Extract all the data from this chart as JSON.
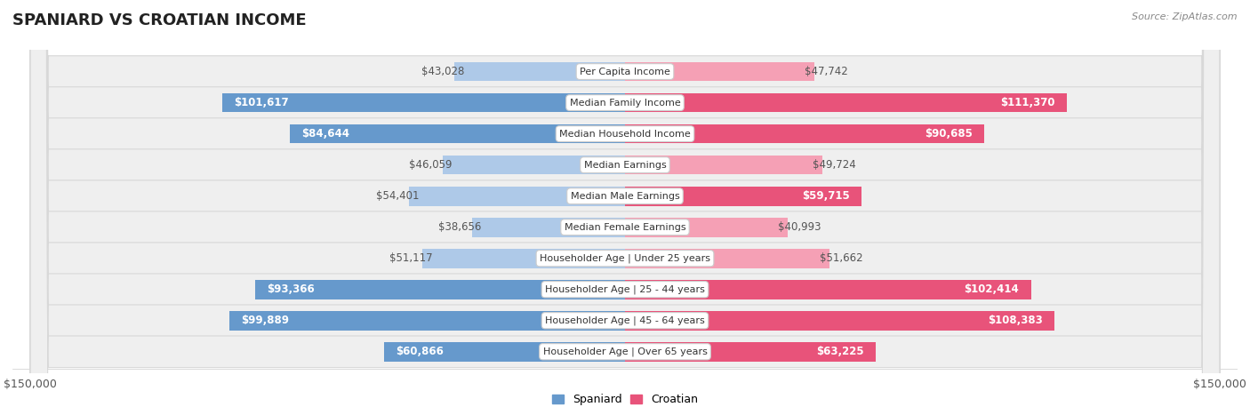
{
  "title": "SPANIARD VS CROATIAN INCOME",
  "source": "Source: ZipAtlas.com",
  "categories": [
    "Per Capita Income",
    "Median Family Income",
    "Median Household Income",
    "Median Earnings",
    "Median Male Earnings",
    "Median Female Earnings",
    "Householder Age | Under 25 years",
    "Householder Age | 25 - 44 years",
    "Householder Age | 45 - 64 years",
    "Householder Age | Over 65 years"
  ],
  "spaniard_values": [
    43028,
    101617,
    84644,
    46059,
    54401,
    38656,
    51117,
    93366,
    99889,
    60866
  ],
  "croatian_values": [
    47742,
    111370,
    90685,
    49724,
    59715,
    40993,
    51662,
    102414,
    108383,
    63225
  ],
  "spaniard_labels": [
    "$43,028",
    "$101,617",
    "$84,644",
    "$46,059",
    "$54,401",
    "$38,656",
    "$51,117",
    "$93,366",
    "$99,889",
    "$60,866"
  ],
  "croatian_labels": [
    "$47,742",
    "$111,370",
    "$90,685",
    "$49,724",
    "$59,715",
    "$40,993",
    "$51,662",
    "$102,414",
    "$108,383",
    "$63,225"
  ],
  "max_val": 150000,
  "spaniard_color_light": "#aec9e8",
  "spaniard_color_dark": "#6699cc",
  "croatian_color_light": "#f5a0b5",
  "croatian_color_dark": "#e8537a",
  "bg_row_color": "#efefef",
  "row_edge_color": "#d8d8d8",
  "label_color_inside": "#ffffff",
  "label_color_outside": "#555555",
  "inside_threshold": 55000,
  "bar_height": 0.62,
  "legend_spaniard": "Spaniard",
  "legend_croatian": "Croatian",
  "title_fontsize": 13,
  "label_fontsize": 8.5,
  "cat_fontsize": 8.0
}
